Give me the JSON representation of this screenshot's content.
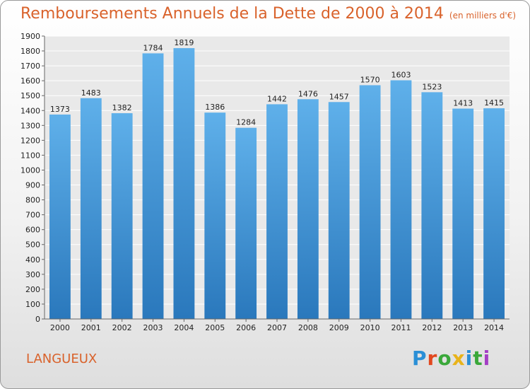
{
  "header": {
    "title": "Remboursements Annuels de la Dette de 2000 à 2014",
    "subtitle": "(en milliers d'€)"
  },
  "footer": {
    "commune": "LANGUEUX",
    "logo_letters": [
      "P",
      "r",
      "o",
      "x",
      "i",
      "t",
      "i"
    ]
  },
  "chart_data": {
    "type": "bar",
    "categories": [
      "2000",
      "2001",
      "2002",
      "2003",
      "2004",
      "2005",
      "2006",
      "2007",
      "2008",
      "2009",
      "2010",
      "2011",
      "2012",
      "2013",
      "2014"
    ],
    "values": [
      1373,
      1483,
      1382,
      1784,
      1819,
      1386,
      1284,
      1442,
      1476,
      1457,
      1570,
      1603,
      1523,
      1413,
      1415
    ],
    "ylim": [
      0,
      1900
    ],
    "ytick_step": 100,
    "grid": true,
    "bar_color": "#4a9fe0",
    "bar_color_dark": "#2f7fc2"
  }
}
